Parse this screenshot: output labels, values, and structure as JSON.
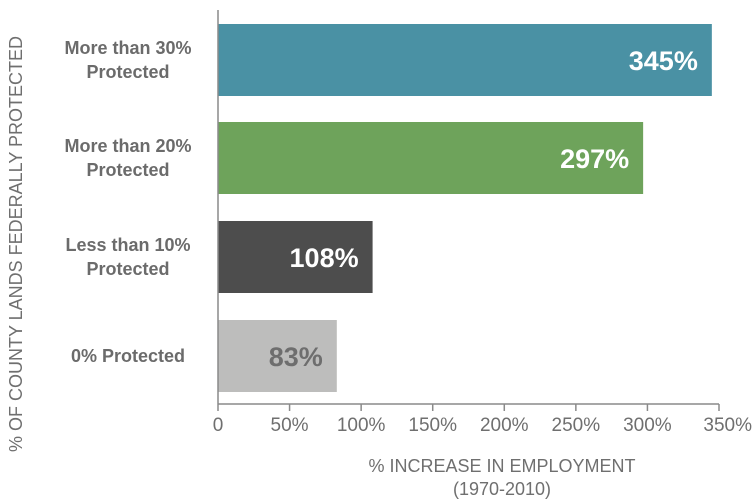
{
  "chart_data": {
    "type": "bar",
    "orientation": "horizontal",
    "categories": [
      [
        "More than 30%",
        "Protected"
      ],
      [
        "More than 20%",
        "Protected"
      ],
      [
        "Less than 10%",
        "Protected"
      ],
      [
        "0% Protected"
      ]
    ],
    "values": [
      345,
      297,
      108,
      83
    ],
    "value_labels": [
      "345%",
      "297%",
      "108%",
      "83%"
    ],
    "bar_colors": [
      "#4a91a4",
      "#6ea35b",
      "#4d4d4d",
      "#bdbdbc"
    ],
    "label_colors": [
      "#ffffff",
      "#ffffff",
      "#ffffff",
      "#6e6e6e"
    ],
    "xlim": [
      0,
      350
    ],
    "xticks": [
      0,
      50,
      100,
      150,
      200,
      250,
      300,
      350
    ],
    "xtick_labels": [
      "0",
      "50%",
      "100%",
      "150%",
      "200%",
      "250%",
      "300%",
      "350%"
    ],
    "xlabel": [
      "% INCREASE IN EMPLOYMENT",
      "(1970-2010)"
    ],
    "ylabel": "% OF COUNTY LANDS FEDERALLY PROTECTED",
    "grid": false,
    "legend": false
  },
  "colors": {
    "axis": "#8a8a8a",
    "text": "#6f6f6f"
  }
}
